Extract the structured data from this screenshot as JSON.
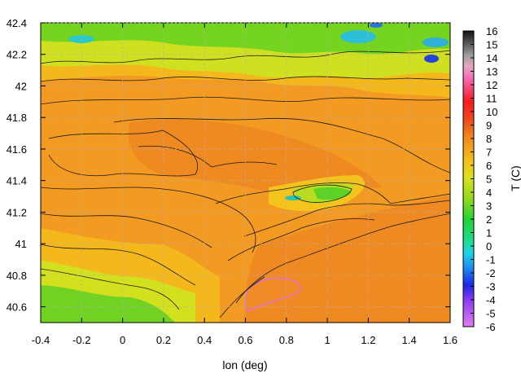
{
  "chart_data": {
    "type": "heatmap",
    "title": "",
    "xlabel": "lon (deg)",
    "ylabel": "",
    "xlim": [
      -0.4,
      1.6
    ],
    "ylim": [
      40.5,
      42.4
    ],
    "x_ticks": [
      "-0.4",
      "-0.2",
      "0",
      "0.2",
      "0.4",
      "0.6",
      "0.8",
      "1",
      "1.2",
      "1.4",
      "1.6"
    ],
    "y_ticks": [
      "40.6",
      "40.8",
      "41",
      "41.2",
      "41.4",
      "41.6",
      "41.8",
      "42",
      "42.2",
      "42.4"
    ],
    "grid": true,
    "colorbar": {
      "label": "T (C)",
      "min": -6,
      "max": 16,
      "ticks": [
        "-6",
        "-5",
        "-4",
        "-3",
        "-2",
        "-1",
        "0",
        "1",
        "2",
        "3",
        "4",
        "5",
        "6",
        "7",
        "8",
        "9",
        "10",
        "11",
        "12",
        "13",
        "14",
        "15",
        "16"
      ]
    }
  }
}
